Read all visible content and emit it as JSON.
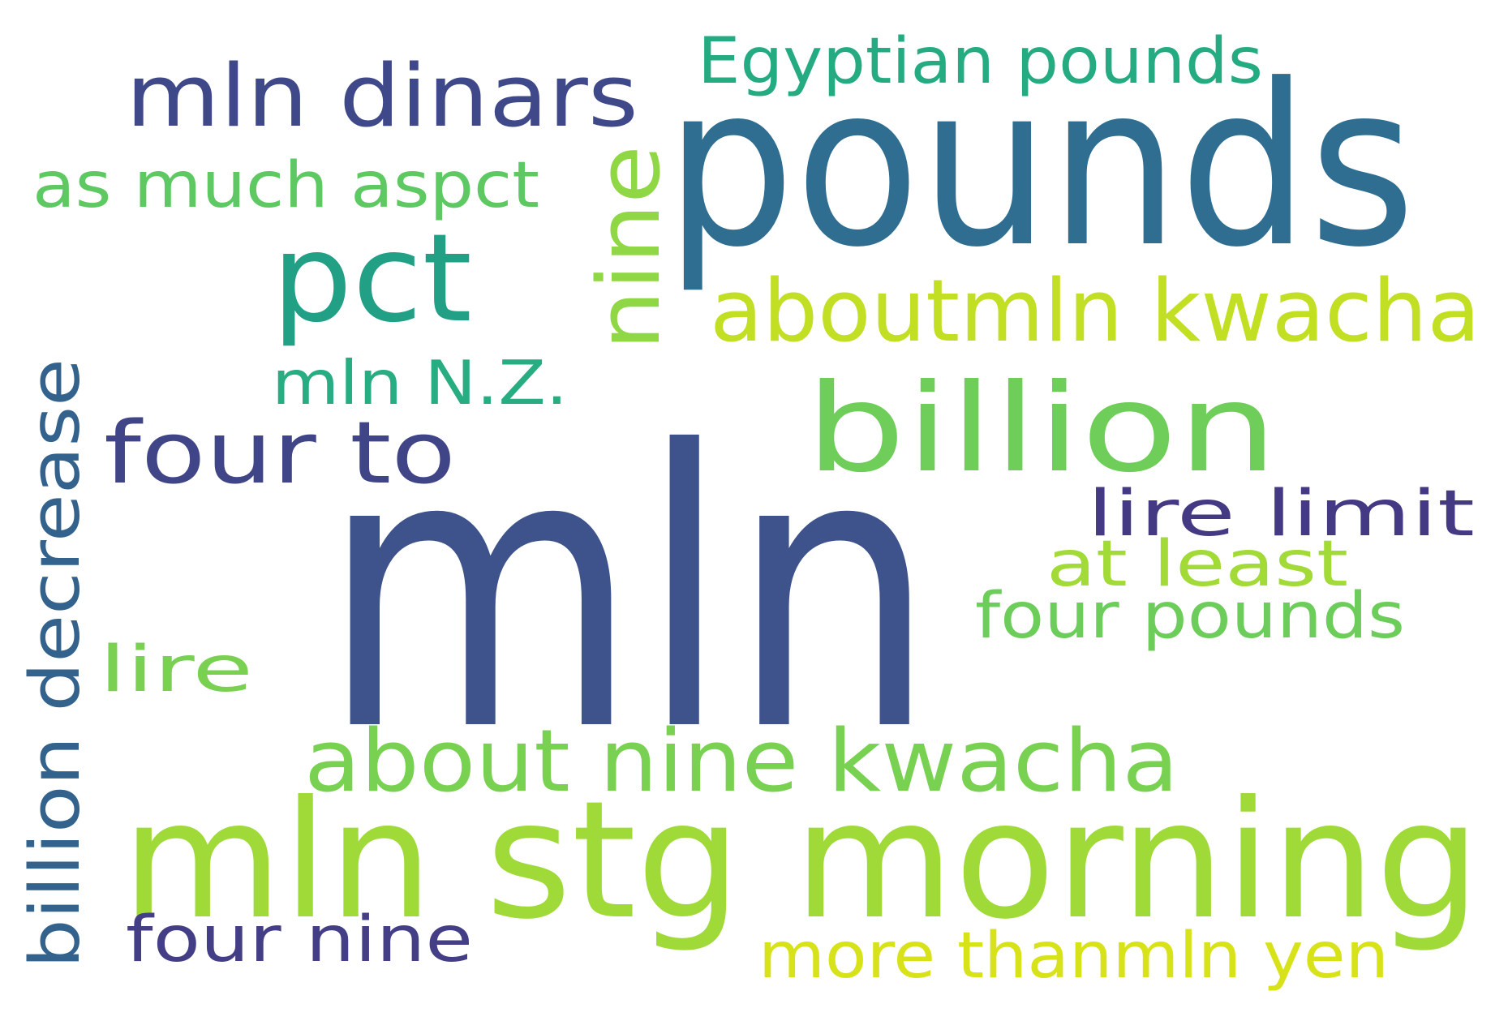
{
  "words": [
    {
      "id": "mln",
      "text": "mln",
      "color": "#3e538b"
    },
    {
      "id": "pounds",
      "text": "pounds",
      "color": "#2f6e91"
    },
    {
      "id": "mln-stg-morning",
      "text": "mln stg morning",
      "color": "#a0da39"
    },
    {
      "id": "billion",
      "text": "billion",
      "color": "#6fcd5a"
    },
    {
      "id": "pct",
      "text": "pct",
      "color": "#21a086"
    },
    {
      "id": "aboutmln-kwacha",
      "text": "aboutmln kwacha",
      "color": "#c2df23"
    },
    {
      "id": "about-nine-kwacha",
      "text": "about nine kwacha",
      "color": "#79d151"
    },
    {
      "id": "mln-dinars",
      "text": "mln dinars",
      "color": "#3f4889"
    },
    {
      "id": "nine",
      "text": "nine",
      "color": "#8fd744"
    },
    {
      "id": "four-to",
      "text": "four to",
      "color": "#404587"
    },
    {
      "id": "billion-decrease",
      "text": "billion decrease",
      "color": "#33638d"
    },
    {
      "id": "egyptian-pounds",
      "text": "Egyptian pounds",
      "color": "#25ab82"
    },
    {
      "id": "as-much-aspct",
      "text": "as much aspct",
      "color": "#5ec962"
    },
    {
      "id": "lire-limit",
      "text": "lire limit",
      "color": "#443983"
    },
    {
      "id": "more-thanmln-yen",
      "text": "more thanmln yen",
      "color": "#d8e219"
    },
    {
      "id": "four-pounds",
      "text": "four pounds",
      "color": "#6ccd5a"
    },
    {
      "id": "at-least",
      "text": "at least",
      "color": "#a2da37"
    },
    {
      "id": "four-nine",
      "text": "four nine",
      "color": "#433e85"
    },
    {
      "id": "mln-nz",
      "text": "mln N.Z.",
      "color": "#27ad81"
    },
    {
      "id": "lire",
      "text": "lire",
      "color": "#7ad151"
    }
  ]
}
